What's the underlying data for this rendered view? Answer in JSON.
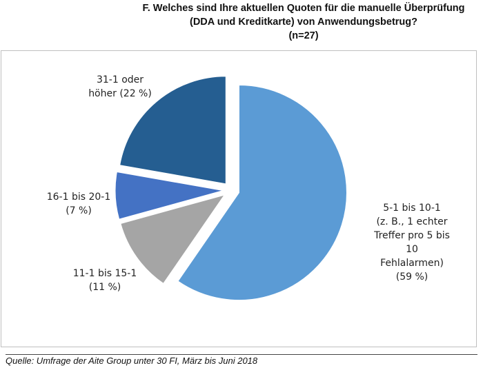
{
  "title_lines": [
    "F. Welches sind Ihre aktuellen Quoten für die manuelle Überprüfung",
    "(DDA und Kreditkarte) von Anwendungsbetrug?",
    "(n=27)"
  ],
  "chart_data": {
    "type": "pie",
    "start_angle_deg": 0,
    "exploded": true,
    "slices": [
      {
        "value": 59,
        "label_lines": [
          "5-1 bis 10-1",
          "(z. B., 1 echter",
          "Treffer pro 5 bis",
          "10",
          "Fehlalarmen)",
          "(59 %)"
        ],
        "color": "#5b9bd5"
      },
      {
        "value": 11,
        "label_lines": [
          "11-1 bis 15-1",
          "(11 %)"
        ],
        "color": "#a5a5a5"
      },
      {
        "value": 7,
        "label_lines": [
          "16-1 bis 20-1",
          "(7 %)"
        ],
        "color": "#4472c4"
      },
      {
        "value": 22,
        "label_lines": [
          "31-1 oder",
          "höher (22 %)"
        ],
        "color": "#255e91"
      }
    ]
  },
  "source": "Quelle: Umfrage der Aite Group unter 30 FI, März bis Juni 2018"
}
